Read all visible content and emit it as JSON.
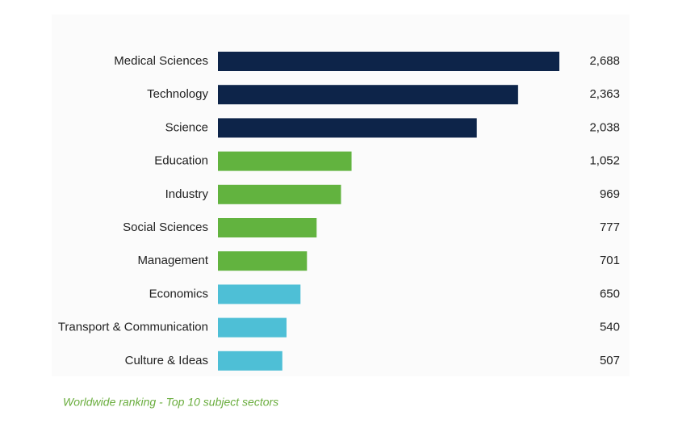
{
  "chart_data": {
    "type": "bar",
    "orientation": "horizontal",
    "caption": "Worldwide ranking - Top 10 subject sectors",
    "categories": [
      "Medical Sciences",
      "Technology",
      "Science",
      "Education",
      "Industry",
      "Social Sciences",
      "Management",
      "Economics",
      "Transport & Communication",
      "Culture & Ideas"
    ],
    "values": [
      2688,
      2363,
      2038,
      1052,
      969,
      777,
      701,
      650,
      540,
      507
    ],
    "value_labels": [
      "2,688",
      "2,363",
      "2,038",
      "1,052",
      "969",
      "777",
      "701",
      "650",
      "540",
      "507"
    ],
    "colors": [
      "#0d2449",
      "#0d2449",
      "#0d2449",
      "#62b33f",
      "#62b33f",
      "#62b33f",
      "#62b33f",
      "#4ebfd6",
      "#4ebfd6",
      "#4ebfd6"
    ]
  }
}
